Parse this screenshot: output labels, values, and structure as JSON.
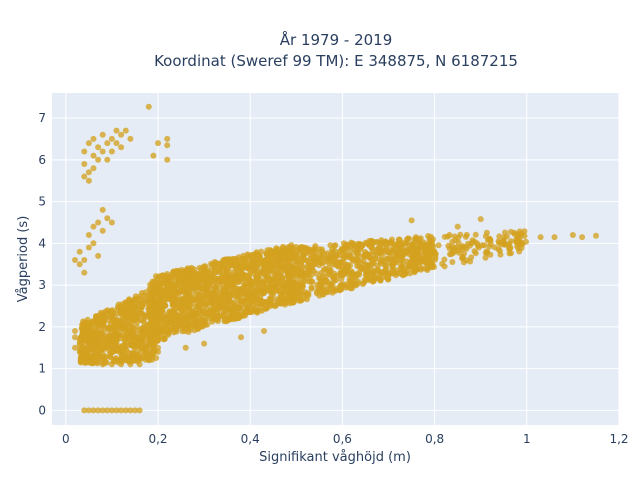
{
  "chart_data": {
    "type": "scatter",
    "title_lines": [
      "År 1979 - 2019",
      "Koordinat (Sweref 99 TM): E 348875, N 6187215"
    ],
    "xlabel": "Signifikant våghöjd (m)",
    "ylabel": "Vågperiod (s)",
    "xlim": [
      -0.03,
      1.2
    ],
    "ylim": [
      -0.35,
      7.6
    ],
    "x_ticks": [
      0,
      0.2,
      0.4,
      0.6,
      0.8,
      1,
      1.2
    ],
    "x_tick_labels": [
      "0",
      "0,2",
      "0,4",
      "0,6",
      "0,8",
      "1",
      "1,2"
    ],
    "y_ticks": [
      0,
      1,
      2,
      3,
      4,
      5,
      6,
      7
    ],
    "y_tick_labels": [
      "0",
      "1",
      "2",
      "3",
      "4",
      "5",
      "6",
      "7"
    ],
    "grid": true,
    "colors": {
      "marker": "#d4a21f",
      "plot_bg": "#e5ecf6",
      "grid": "#ffffff",
      "text": "#2a3f5f"
    },
    "points": [
      [
        0.04,
        0
      ],
      [
        0.05,
        0
      ],
      [
        0.06,
        0
      ],
      [
        0.07,
        0
      ],
      [
        0.08,
        0
      ],
      [
        0.09,
        0
      ],
      [
        0.1,
        0
      ],
      [
        0.11,
        0
      ],
      [
        0.12,
        0
      ],
      [
        0.13,
        0
      ],
      [
        0.14,
        0
      ],
      [
        0.15,
        0
      ],
      [
        0.16,
        0
      ],
      [
        0.02,
        1.5
      ],
      [
        0.03,
        1.7
      ],
      [
        0.02,
        1.9
      ],
      [
        0.04,
        1.3
      ],
      [
        0.05,
        1.6
      ],
      [
        0.03,
        1.4
      ],
      [
        0.02,
        1.75
      ],
      [
        0.03,
        3.5
      ],
      [
        0.03,
        3.8
      ],
      [
        0.04,
        3.6
      ],
      [
        0.05,
        3.9
      ],
      [
        0.05,
        4.2
      ],
      [
        0.06,
        4.0
      ],
      [
        0.07,
        3.7
      ],
      [
        0.06,
        4.4
      ],
      [
        0.07,
        4.5
      ],
      [
        0.08,
        4.3
      ],
      [
        0.09,
        4.6
      ],
      [
        0.08,
        4.8
      ],
      [
        0.1,
        4.5
      ],
      [
        0.04,
        3.3
      ],
      [
        0.02,
        3.6
      ],
      [
        0.04,
        5.9
      ],
      [
        0.04,
        6.2
      ],
      [
        0.05,
        6.4
      ],
      [
        0.05,
        5.7
      ],
      [
        0.06,
        6.1
      ],
      [
        0.06,
        6.5
      ],
      [
        0.07,
        6.0
      ],
      [
        0.07,
        6.3
      ],
      [
        0.08,
        6.2
      ],
      [
        0.08,
        6.6
      ],
      [
        0.09,
        6.4
      ],
      [
        0.09,
        6.0
      ],
      [
        0.1,
        6.5
      ],
      [
        0.1,
        6.2
      ],
      [
        0.11,
        6.7
      ],
      [
        0.11,
        6.4
      ],
      [
        0.12,
        6.6
      ],
      [
        0.13,
        6.7
      ],
      [
        0.14,
        6.5
      ],
      [
        0.12,
        6.3
      ],
      [
        0.04,
        5.6
      ],
      [
        0.05,
        5.5
      ],
      [
        0.06,
        5.8
      ],
      [
        0.18,
        7.27
      ],
      [
        0.19,
        6.1
      ],
      [
        0.2,
        6.4
      ],
      [
        0.22,
        6.5
      ],
      [
        0.22,
        6.0
      ],
      [
        0.22,
        6.35
      ],
      [
        0.75,
        4.55
      ],
      [
        0.85,
        4.4
      ],
      [
        0.9,
        4.58
      ],
      [
        0.98,
        4.1
      ],
      [
        1.03,
        4.15
      ],
      [
        1.06,
        4.15
      ],
      [
        1.1,
        4.2
      ],
      [
        1.12,
        4.15
      ],
      [
        1.15,
        4.18
      ],
      [
        0.95,
        4.05
      ],
      [
        0.08,
        1.1
      ],
      [
        0.1,
        1.1
      ],
      [
        0.12,
        1.1
      ],
      [
        0.14,
        1.1
      ],
      [
        0.16,
        1.1
      ],
      [
        0.11,
        1.2
      ],
      [
        0.15,
        1.25
      ],
      [
        0.26,
        1.5
      ],
      [
        0.3,
        1.6
      ],
      [
        0.38,
        1.75
      ],
      [
        0.43,
        1.9
      ],
      [
        0.2,
        1.4
      ]
    ],
    "bands": [
      {
        "x_start": 0.03,
        "x_end": 0.2,
        "y_lo_start": 1.1,
        "y_lo_end": 1.2,
        "y_hi_start": 2.1,
        "y_hi_end": 3.0,
        "n": 700
      },
      {
        "x_start": 0.18,
        "x_end": 0.5,
        "y_lo_start": 1.6,
        "y_lo_end": 2.6,
        "y_hi_start": 3.2,
        "y_hi_end": 4.0,
        "n": 1400
      },
      {
        "x_start": 0.5,
        "x_end": 0.8,
        "y_lo_start": 2.6,
        "y_lo_end": 3.4,
        "y_hi_start": 3.9,
        "y_hi_end": 4.2,
        "n": 700
      },
      {
        "x_start": 0.8,
        "x_end": 1.0,
        "y_lo_start": 3.4,
        "y_lo_end": 3.8,
        "y_hi_start": 4.2,
        "y_hi_end": 4.3,
        "n": 120
      }
    ]
  }
}
